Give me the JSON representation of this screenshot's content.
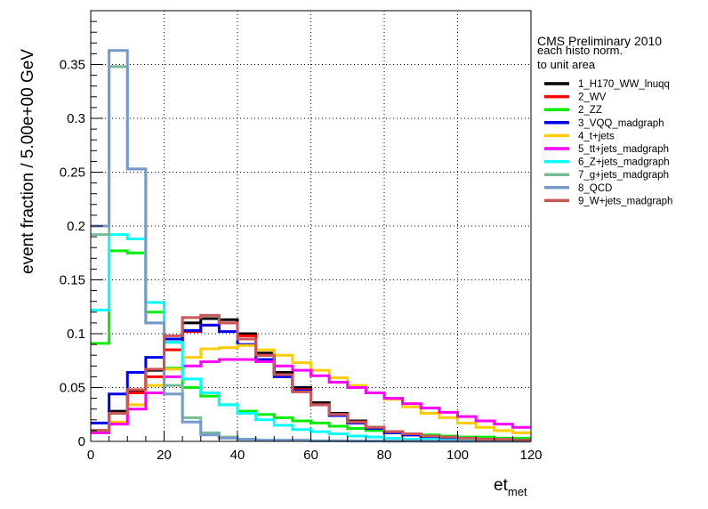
{
  "chart_data": {
    "type": "histogram-step",
    "header": {
      "title": "CMS Preliminary 2010",
      "note_line1": "each histo norm.",
      "note_line2": "to unit area"
    },
    "xlabel_main": "et",
    "xlabel_sub": "met",
    "ylabel": "event fraction / 5.00e+00 GeV",
    "xlim": [
      0,
      120
    ],
    "ylim": [
      0,
      0.4
    ],
    "grid": true,
    "legend_position": "top-right",
    "x_ticks": [
      "0",
      "20",
      "40",
      "60",
      "80",
      "100",
      "120"
    ],
    "y_ticks": [
      "0",
      "0.05",
      "0.1",
      "0.15",
      "0.2",
      "0.25",
      "0.3",
      "0.35"
    ],
    "bin_edges": [
      0,
      5,
      10,
      15,
      20,
      25,
      30,
      35,
      40,
      45,
      50,
      55,
      60,
      65,
      70,
      75,
      80,
      85,
      90,
      95,
      100,
      105,
      110,
      115,
      120
    ],
    "series": [
      {
        "name": "1_H170_WW_lnuqq",
        "color": "#000000",
        "values": [
          0.01,
          0.028,
          0.046,
          0.066,
          0.092,
          0.11,
          0.114,
          0.113,
          0.1,
          0.082,
          0.064,
          0.05,
          0.036,
          0.026,
          0.019,
          0.013,
          0.009,
          0.006,
          0.004,
          0.003,
          0.002,
          0.002,
          0.001,
          0.001
        ]
      },
      {
        "name": "2_WV",
        "color": "#ff0000",
        "values": [
          0.01,
          0.026,
          0.045,
          0.06,
          0.085,
          0.102,
          0.108,
          0.11,
          0.098,
          0.08,
          0.062,
          0.048,
          0.034,
          0.025,
          0.018,
          0.012,
          0.008,
          0.006,
          0.004,
          0.003,
          0.002,
          0.001,
          0.001,
          0.001
        ]
      },
      {
        "name": "2_ZZ",
        "color": "#00ee00",
        "values": [
          0.091,
          0.177,
          0.175,
          0.12,
          0.068,
          0.05,
          0.042,
          0.034,
          0.028,
          0.025,
          0.022,
          0.019,
          0.017,
          0.014,
          0.012,
          0.01,
          0.008,
          0.007,
          0.006,
          0.005,
          0.004,
          0.004,
          0.003,
          0.003
        ]
      },
      {
        "name": "3_VQQ_madgraph",
        "color": "#0000ee",
        "values": [
          0.017,
          0.044,
          0.064,
          0.078,
          0.095,
          0.103,
          0.108,
          0.102,
          0.09,
          0.076,
          0.06,
          0.047,
          0.034,
          0.024,
          0.017,
          0.012,
          0.008,
          0.006,
          0.004,
          0.003,
          0.002,
          0.002,
          0.001,
          0.001
        ]
      },
      {
        "name": "4_t+jets",
        "color": "#ffcc00",
        "values": [
          0.008,
          0.018,
          0.034,
          0.052,
          0.067,
          0.078,
          0.086,
          0.087,
          0.089,
          0.085,
          0.08,
          0.073,
          0.066,
          0.059,
          0.052,
          0.045,
          0.039,
          0.032,
          0.026,
          0.022,
          0.017,
          0.013,
          0.01,
          0.008
        ]
      },
      {
        "name": "5_tt+jets_madgraph",
        "color": "#ff00ff",
        "values": [
          0.008,
          0.016,
          0.03,
          0.045,
          0.06,
          0.07,
          0.074,
          0.076,
          0.076,
          0.074,
          0.07,
          0.066,
          0.061,
          0.055,
          0.05,
          0.045,
          0.04,
          0.035,
          0.031,
          0.027,
          0.023,
          0.019,
          0.016,
          0.013
        ]
      },
      {
        "name": "6_Z+jets_madgraph",
        "color": "#00ffff",
        "values": [
          0.122,
          0.192,
          0.188,
          0.129,
          0.092,
          0.058,
          0.045,
          0.034,
          0.026,
          0.02,
          0.015,
          0.011,
          0.009,
          0.007,
          0.005,
          0.004,
          0.003,
          0.002,
          0.002,
          0.001,
          0.001,
          0.001,
          0.001,
          0.0005
        ]
      },
      {
        "name": "7_g+jets_madgraph",
        "color": "#77bb99",
        "values": [
          0.192,
          0.348,
          0.253,
          0.11,
          0.052,
          0.022,
          0.008,
          0.004,
          0.002,
          0.001,
          0.001,
          0.001,
          0.0005,
          0.0005,
          0.0003,
          0.0003,
          0.0002,
          0.0002,
          0.0001,
          0.0001,
          0.0001,
          0.0001,
          0.0001,
          0.0001
        ]
      },
      {
        "name": "8_QCD",
        "color": "#7799cc",
        "values": [
          0.2,
          0.363,
          0.253,
          0.11,
          0.044,
          0.018,
          0.006,
          0.003,
          0.002,
          0.001,
          0.001,
          0.001,
          0.0005,
          0.0005,
          0.0003,
          0.0003,
          0.0002,
          0.0002,
          0.0001,
          0.0001,
          0.0001,
          0.0001,
          0.0001,
          0.0001
        ]
      },
      {
        "name": "9_W+jets_madgraph",
        "color": "#cc5555",
        "values": [
          0.01,
          0.026,
          0.048,
          0.067,
          0.098,
          0.115,
          0.117,
          0.11,
          0.095,
          0.08,
          0.062,
          0.046,
          0.034,
          0.025,
          0.018,
          0.013,
          0.009,
          0.007,
          0.005,
          0.004,
          0.003,
          0.002,
          0.002,
          0.001
        ]
      }
    ]
  }
}
